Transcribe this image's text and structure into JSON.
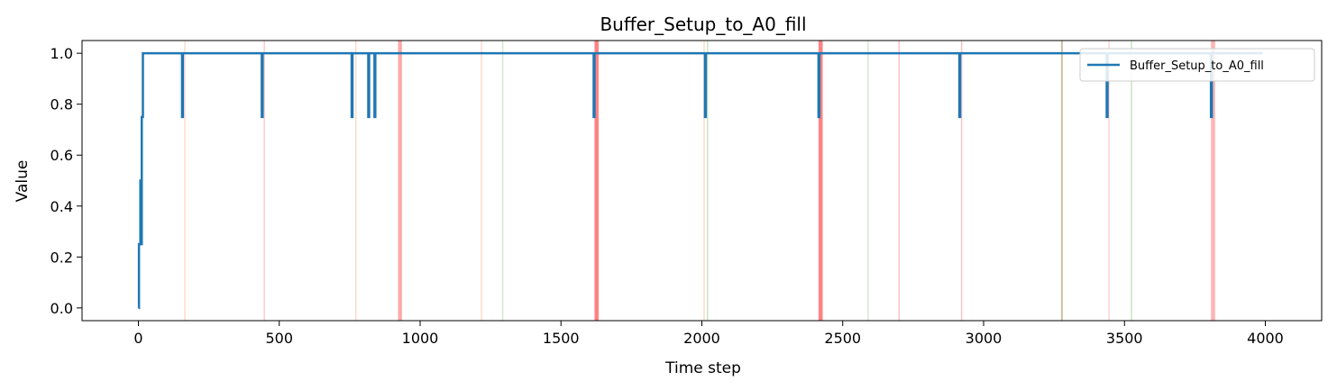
{
  "chart_data": {
    "type": "line",
    "title": "Buffer_Setup_to_A0_fill",
    "xlabel": "Time step",
    "ylabel": "Value",
    "xlim": [
      -200,
      4200
    ],
    "ylim": [
      -0.05,
      1.05
    ],
    "xticks": [
      0,
      500,
      1000,
      1500,
      2000,
      2500,
      3000,
      3500,
      4000
    ],
    "yticks": [
      0.0,
      0.2,
      0.4,
      0.6,
      0.8,
      1.0
    ],
    "xtick_labels": [
      "0",
      "500",
      "1000",
      "1500",
      "2000",
      "2500",
      "3000",
      "3500",
      "4000"
    ],
    "ytick_labels": [
      "0.0",
      "0.2",
      "0.4",
      "0.6",
      "0.8",
      "1.0"
    ],
    "grid": false,
    "legend_position": "top-right",
    "series": [
      {
        "name": "Buffer_Setup_to_A0_fill",
        "color": "#1f77b4",
        "x": [
          0,
          2,
          2,
          7,
          7,
          9,
          9,
          12,
          12,
          16,
          16,
          155,
          155,
          158,
          158,
          438,
          438,
          441,
          441,
          757,
          757,
          760,
          760,
          816,
          816,
          819,
          819,
          838,
          838,
          841,
          841,
          1616,
          1616,
          1619,
          1619,
          2011,
          2011,
          2014,
          2014,
          2414,
          2414,
          2417,
          2417,
          2914,
          2914,
          2917,
          2917,
          3437,
          3437,
          3440,
          3440,
          3807,
          3807,
          3810,
          3810,
          3990
        ],
        "y": [
          0,
          0,
          0.25,
          0.25,
          0.5,
          0.5,
          0.25,
          0.25,
          0.75,
          0.75,
          1,
          1,
          0.75,
          0.75,
          1,
          1,
          0.75,
          0.75,
          1,
          1,
          0.75,
          0.75,
          1,
          1,
          0.75,
          0.75,
          1,
          1,
          0.75,
          0.75,
          1,
          1,
          0.75,
          0.75,
          1,
          1,
          0.75,
          0.75,
          1,
          1,
          0.75,
          0.75,
          1,
          1,
          0.75,
          0.75,
          1,
          1,
          0.75,
          0.75,
          1,
          1,
          0.75,
          0.75,
          1,
          1
        ]
      }
    ],
    "vertical_lines": [
      {
        "x": 165,
        "color": "#f4a582",
        "alpha": 0.4,
        "width": 1.5
      },
      {
        "x": 447,
        "color": "#ff9999",
        "alpha": 0.5,
        "width": 1.5
      },
      {
        "x": 772,
        "color": "#f4a582",
        "alpha": 0.4,
        "width": 1.5
      },
      {
        "x": 925,
        "color": "#ff7777",
        "alpha": 0.7,
        "width": 2
      },
      {
        "x": 932,
        "color": "#ff7777",
        "alpha": 0.7,
        "width": 2
      },
      {
        "x": 1218,
        "color": "#f4a582",
        "alpha": 0.4,
        "width": 1.5
      },
      {
        "x": 1293,
        "color": "#a6d49a",
        "alpha": 0.5,
        "width": 1.5
      },
      {
        "x": 1623,
        "color": "#ff6666",
        "alpha": 0.8,
        "width": 2.5
      },
      {
        "x": 1630,
        "color": "#ff6666",
        "alpha": 0.8,
        "width": 2.5
      },
      {
        "x": 2008,
        "color": "#f4a582",
        "alpha": 0.4,
        "width": 1.5
      },
      {
        "x": 2020,
        "color": "#a6d49a",
        "alpha": 0.6,
        "width": 1.5
      },
      {
        "x": 2418,
        "color": "#ff6666",
        "alpha": 0.8,
        "width": 2.5
      },
      {
        "x": 2425,
        "color": "#ff6666",
        "alpha": 0.8,
        "width": 2.5
      },
      {
        "x": 2590,
        "color": "#a6d49a",
        "alpha": 0.5,
        "width": 1.5
      },
      {
        "x": 2700,
        "color": "#ff9999",
        "alpha": 0.6,
        "width": 1.5
      },
      {
        "x": 2922,
        "color": "#ff9999",
        "alpha": 0.6,
        "width": 1.5
      },
      {
        "x": 3278,
        "color": "#b5a585",
        "alpha": 0.7,
        "width": 2
      },
      {
        "x": 3445,
        "color": "#ffaaaa",
        "alpha": 0.5,
        "width": 1.5
      },
      {
        "x": 3525,
        "color": "#a6d49a",
        "alpha": 0.6,
        "width": 1.5
      },
      {
        "x": 3811,
        "color": "#ff9999",
        "alpha": 0.7,
        "width": 2.5
      },
      {
        "x": 3818,
        "color": "#ff9999",
        "alpha": 0.7,
        "width": 2.5
      }
    ]
  }
}
